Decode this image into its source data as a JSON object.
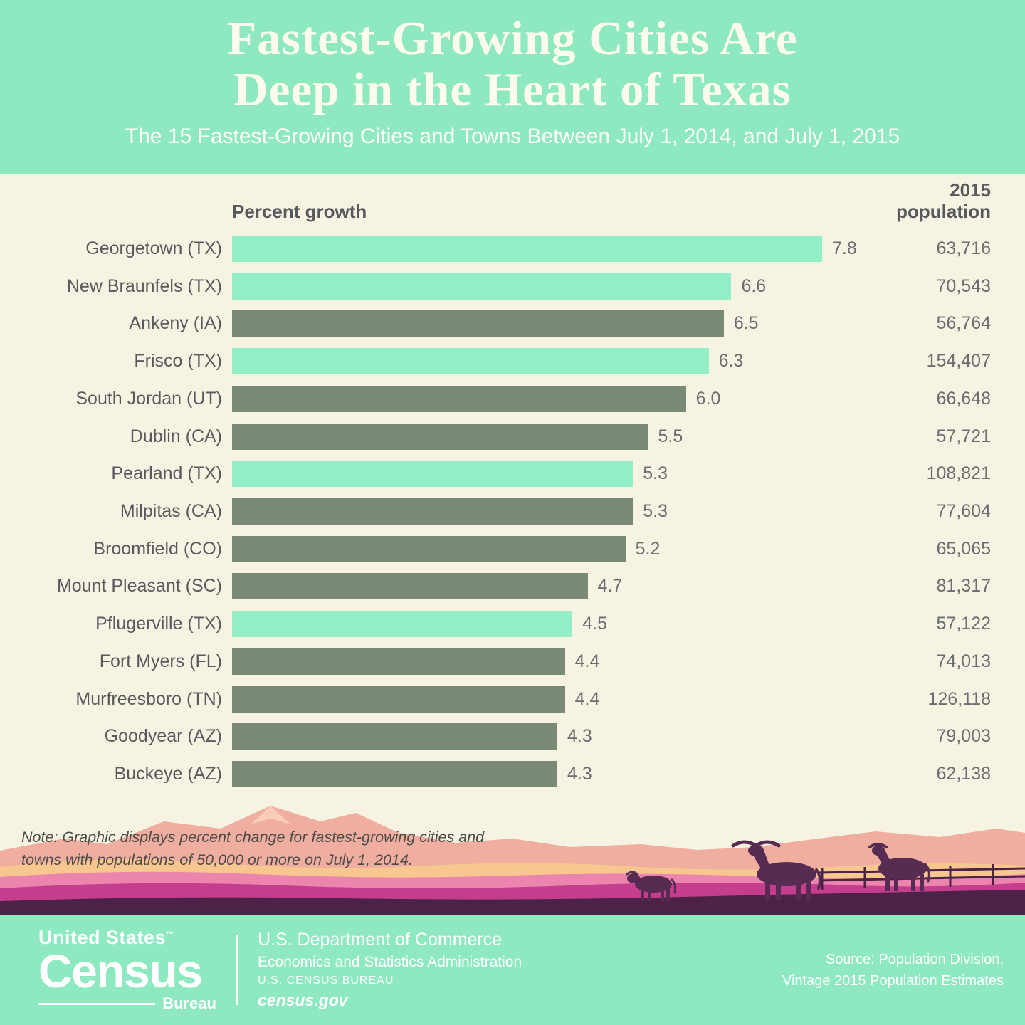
{
  "header": {
    "title_line1": "Fastest-Growing Cities Are",
    "title_line2": "Deep in the Heart of Texas",
    "subtitle": "The 15 Fastest-Growing Cities and Towns Between July 1, 2014, and July 1, 2015"
  },
  "chart_data": {
    "type": "bar",
    "orientation": "horizontal",
    "title": "Fastest-Growing Cities Are Deep in the Heart of Texas",
    "subtitle": "The 15 Fastest-Growing Cities and Towns Between July 1, 2014, and July 1, 2015",
    "columns": {
      "growth": "Percent growth",
      "population": [
        "2015",
        "population"
      ]
    },
    "value_axis_max": 7.8,
    "highlight_color": "#92efc6",
    "default_color": "#7b8a76",
    "highlight_meaning": "Texas cities",
    "rows": [
      {
        "city": "Georgetown (TX)",
        "growth": 7.8,
        "population_2015": "63,716",
        "texas_highlight": true
      },
      {
        "city": "New Braunfels (TX)",
        "growth": 6.6,
        "population_2015": "70,543",
        "texas_highlight": true
      },
      {
        "city": "Ankeny (IA)",
        "growth": 6.5,
        "population_2015": "56,764",
        "texas_highlight": false
      },
      {
        "city": "Frisco (TX)",
        "growth": 6.3,
        "population_2015": "154,407",
        "texas_highlight": true
      },
      {
        "city": "South Jordan (UT)",
        "growth": 6.0,
        "population_2015": "66,648",
        "texas_highlight": false
      },
      {
        "city": "Dublin (CA)",
        "growth": 5.5,
        "population_2015": "57,721",
        "texas_highlight": false
      },
      {
        "city": "Pearland (TX)",
        "growth": 5.3,
        "population_2015": "108,821",
        "texas_highlight": true
      },
      {
        "city": "Milpitas (CA)",
        "growth": 5.3,
        "population_2015": "77,604",
        "texas_highlight": false
      },
      {
        "city": "Broomfield (CO)",
        "growth": 5.2,
        "population_2015": "65,065",
        "texas_highlight": false
      },
      {
        "city": "Mount Pleasant (SC)",
        "growth": 4.7,
        "population_2015": "81,317",
        "texas_highlight": false
      },
      {
        "city": "Pflugerville (TX)",
        "growth": 4.5,
        "population_2015": "57,122",
        "texas_highlight": true
      },
      {
        "city": "Fort Myers (FL)",
        "growth": 4.4,
        "population_2015": "74,013",
        "texas_highlight": false
      },
      {
        "city": "Murfreesboro (TN)",
        "growth": 4.4,
        "population_2015": "126,118",
        "texas_highlight": false
      },
      {
        "city": "Goodyear (AZ)",
        "growth": 4.3,
        "population_2015": "79,003",
        "texas_highlight": false
      },
      {
        "city": "Buckeye (AZ)",
        "growth": 4.3,
        "population_2015": "62,138",
        "texas_highlight": false
      }
    ]
  },
  "note": "Note: Graphic displays percent change for fastest-growing cities and towns with populations of 50,000 or more on July 1, 2014.",
  "footer": {
    "logo": {
      "top": "United States",
      "tm": "™",
      "main": "Census",
      "sub": "Bureau"
    },
    "dept_line1": "U.S. Department of Commerce",
    "dept_line2": "Economics and Statistics Administration",
    "dept_line3": "U.S. CENSUS BUREAU",
    "dept_line4": "census.gov",
    "source_line1": "Source: Population Division,",
    "source_line2": "Vintage 2015 Population Estimates"
  }
}
